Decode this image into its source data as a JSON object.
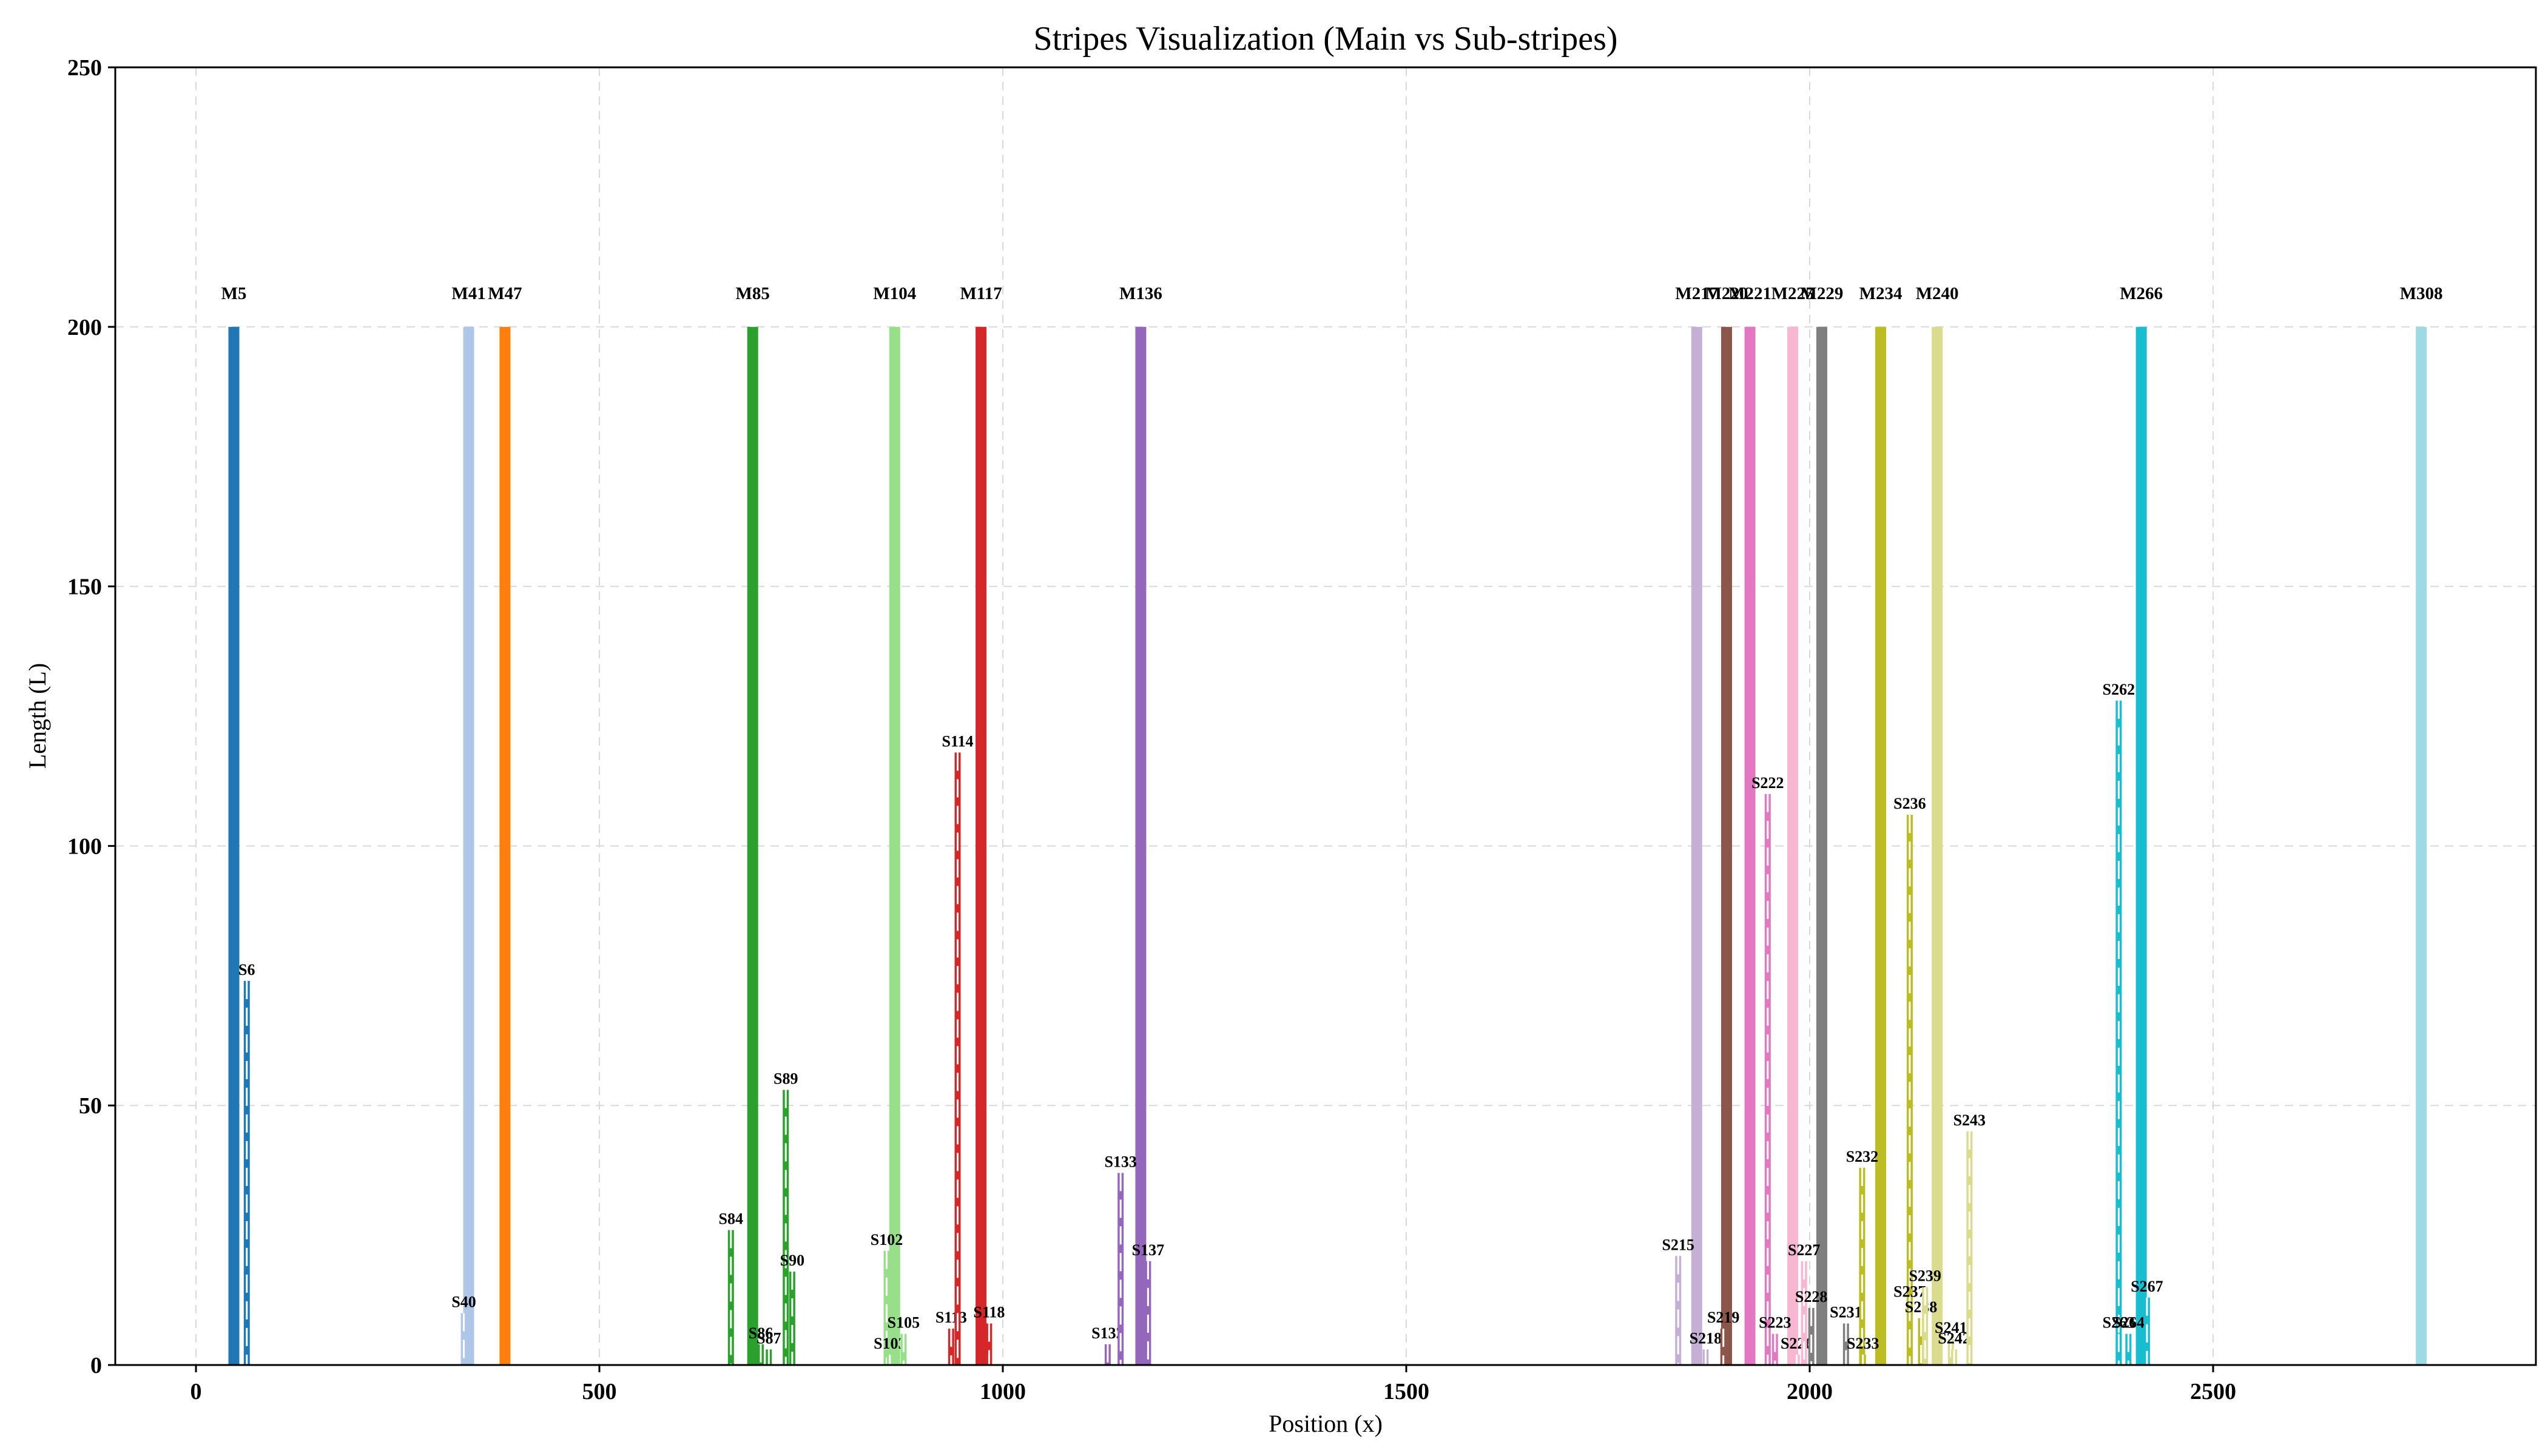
{
  "chart_data": {
    "type": "bar",
    "title": "Stripes Visualization (Main vs Sub-stripes)",
    "xlabel": "Position (x)",
    "ylabel": "Length (L)",
    "xlim": [
      -100,
      2900
    ],
    "ylim": [
      0,
      250
    ],
    "xticks": [
      0,
      500,
      1000,
      1500,
      2000,
      2500
    ],
    "yticks": [
      0,
      50,
      100,
      150,
      200,
      250
    ],
    "grid": true,
    "main_stripes": [
      {
        "label": "M5",
        "x": 47,
        "length": 200,
        "color": "#1f77b4"
      },
      {
        "label": "M41",
        "x": 338,
        "length": 200,
        "color": "#aec7e8"
      },
      {
        "label": "M47",
        "x": 383,
        "length": 200,
        "color": "#ff7f0e"
      },
      {
        "label": "M85",
        "x": 690,
        "length": 200,
        "color": "#2ca02c"
      },
      {
        "label": "M104",
        "x": 866,
        "length": 200,
        "color": "#98df8a"
      },
      {
        "label": "M117",
        "x": 973,
        "length": 200,
        "color": "#d62728"
      },
      {
        "label": "M136",
        "x": 1171,
        "length": 200,
        "color": "#9467bd"
      },
      {
        "label": "M217",
        "x": 1860,
        "length": 200,
        "color": "#c5b0d5"
      },
      {
        "label": "M220",
        "x": 1897,
        "length": 200,
        "color": "#8c564b"
      },
      {
        "label": "M221",
        "x": 1926,
        "length": 200,
        "color": "#e377c2"
      },
      {
        "label": "M225",
        "x": 1979,
        "length": 200,
        "color": "#f7b6d2"
      },
      {
        "label": "M229",
        "x": 2015,
        "length": 200,
        "color": "#7f7f7f"
      },
      {
        "label": "M234",
        "x": 2088,
        "length": 200,
        "color": "#bcbd22"
      },
      {
        "label": "M240",
        "x": 2158,
        "length": 200,
        "color": "#dbdb8d"
      },
      {
        "label": "M266",
        "x": 2411,
        "length": 200,
        "color": "#17becf"
      },
      {
        "label": "M308",
        "x": 2758,
        "length": 200,
        "color": "#9edae5"
      }
    ],
    "sub_stripes": [
      {
        "label": "S6",
        "x": 63,
        "length": 74,
        "color": "#1f77b4"
      },
      {
        "label": "S40",
        "x": 332,
        "length": 10,
        "color": "#aec7e8"
      },
      {
        "label": "S84",
        "x": 663,
        "length": 26,
        "color": "#2ca02c"
      },
      {
        "label": "S86",
        "x": 700,
        "length": 4,
        "color": "#2ca02c"
      },
      {
        "label": "S87",
        "x": 710,
        "length": 3,
        "color": "#2ca02c"
      },
      {
        "label": "S89",
        "x": 731,
        "length": 53,
        "color": "#2ca02c"
      },
      {
        "label": "S90",
        "x": 739,
        "length": 18,
        "color": "#2ca02c"
      },
      {
        "label": "S102",
        "x": 856,
        "length": 22,
        "color": "#98df8a"
      },
      {
        "label": "S103",
        "x": 860,
        "length": 2,
        "color": "#98df8a"
      },
      {
        "label": "S105",
        "x": 877,
        "length": 6,
        "color": "#98df8a"
      },
      {
        "label": "S113",
        "x": 936,
        "length": 7,
        "color": "#d62728"
      },
      {
        "label": "S114",
        "x": 944,
        "length": 118,
        "color": "#d62728"
      },
      {
        "label": "S118",
        "x": 983,
        "length": 8,
        "color": "#d62728"
      },
      {
        "label": "S132",
        "x": 1130,
        "length": 4,
        "color": "#9467bd"
      },
      {
        "label": "S133",
        "x": 1146,
        "length": 37,
        "color": "#9467bd"
      },
      {
        "label": "S137",
        "x": 1180,
        "length": 20,
        "color": "#9467bd"
      },
      {
        "label": "S215",
        "x": 1837,
        "length": 21,
        "color": "#c5b0d5"
      },
      {
        "label": "S218",
        "x": 1871,
        "length": 3,
        "color": "#c5b0d5"
      },
      {
        "label": "S219",
        "x": 1893,
        "length": 7,
        "color": "#8c564b"
      },
      {
        "label": "S222",
        "x": 1948,
        "length": 110,
        "color": "#e377c2"
      },
      {
        "label": "S223",
        "x": 1957,
        "length": 6,
        "color": "#e377c2"
      },
      {
        "label": "S226",
        "x": 1984,
        "length": 2,
        "color": "#f7b6d2"
      },
      {
        "label": "S227",
        "x": 1993,
        "length": 20,
        "color": "#f7b6d2"
      },
      {
        "label": "S228",
        "x": 2002,
        "length": 11,
        "color": "#7f7f7f"
      },
      {
        "label": "S231",
        "x": 2045,
        "length": 8,
        "color": "#7f7f7f"
      },
      {
        "label": "S232",
        "x": 2065,
        "length": 38,
        "color": "#bcbd22"
      },
      {
        "label": "S233",
        "x": 2066,
        "length": 2,
        "color": "#bcbd22"
      },
      {
        "label": "S236",
        "x": 2124,
        "length": 106,
        "color": "#bcbd22"
      },
      {
        "label": "S237",
        "x": 2124,
        "length": 12,
        "color": "#bcbd22"
      },
      {
        "label": "S238",
        "x": 2138,
        "length": 9,
        "color": "#bcbd22"
      },
      {
        "label": "S239",
        "x": 2143,
        "length": 15,
        "color": "#dbdb8d"
      },
      {
        "label": "S241",
        "x": 2175,
        "length": 5,
        "color": "#dbdb8d"
      },
      {
        "label": "S242",
        "x": 2179,
        "length": 3,
        "color": "#dbdb8d"
      },
      {
        "label": "S243",
        "x": 2198,
        "length": 45,
        "color": "#dbdb8d"
      },
      {
        "label": "S262",
        "x": 2383,
        "length": 128,
        "color": "#17becf"
      },
      {
        "label": "S263",
        "x": 2383,
        "length": 6,
        "color": "#17becf"
      },
      {
        "label": "S264",
        "x": 2395,
        "length": 6,
        "color": "#17becf"
      },
      {
        "label": "S267",
        "x": 2418,
        "length": 13,
        "color": "#17becf"
      }
    ]
  }
}
